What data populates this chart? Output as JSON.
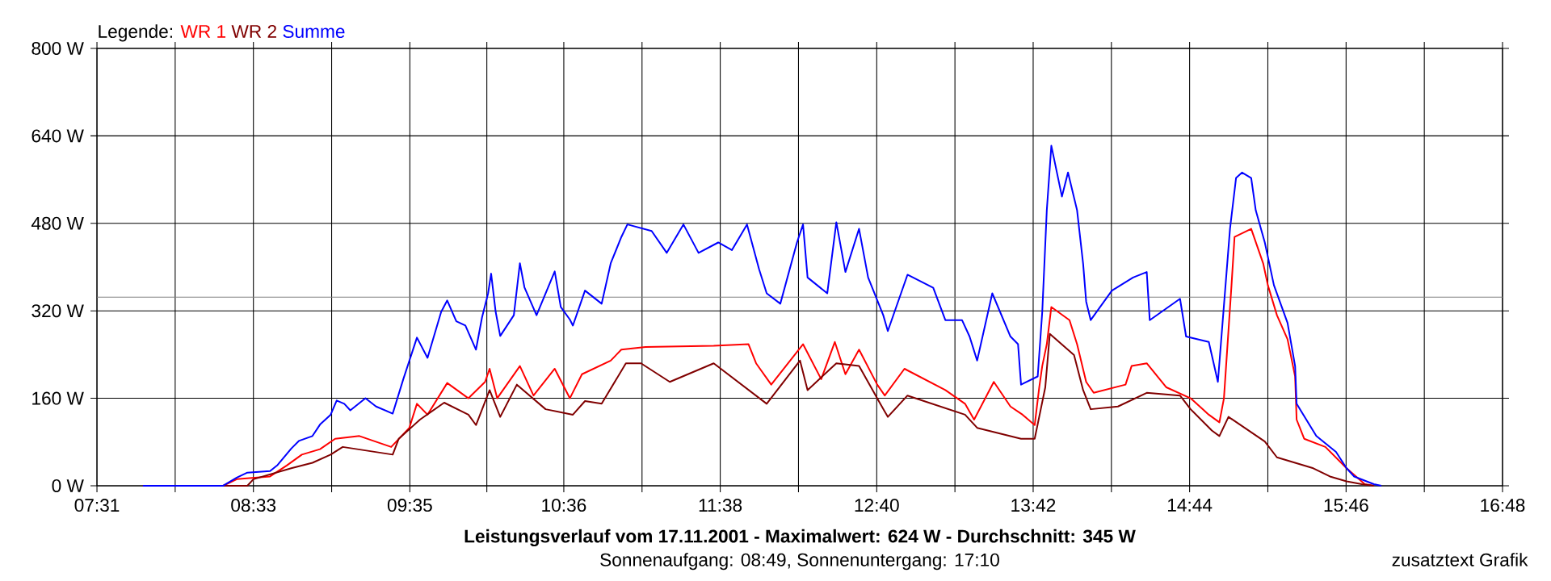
{
  "chart_data": {
    "type": "line",
    "title": "Leistungsverlauf vom 17.11.2001 - Maximalwert: 624 W - Durchschnitt: 345 W",
    "subtitle": "Sonnenaufgang: 08:49, Sonnenuntergang: 17:10",
    "annotations": [
      "zusatztext Grafik"
    ],
    "legend_title": "Legende:",
    "legend": "top left",
    "grid": true,
    "xlim": [
      7.5167,
      16.8
    ],
    "xticks": [
      {
        "value": 7.5167,
        "label": "07:31"
      },
      {
        "value": 8.0333,
        "label": null
      },
      {
        "value": 8.55,
        "label": "08:33"
      },
      {
        "value": 9.0667,
        "label": null
      },
      {
        "value": 9.5833,
        "label": "09:35"
      },
      {
        "value": 10.0917,
        "label": null
      },
      {
        "value": 10.6,
        "label": "10:36"
      },
      {
        "value": 11.1167,
        "label": null
      },
      {
        "value": 11.6333,
        "label": "11:38"
      },
      {
        "value": 12.15,
        "label": null
      },
      {
        "value": 12.6667,
        "label": "12:40"
      },
      {
        "value": 13.1833,
        "label": null
      },
      {
        "value": 13.7,
        "label": "13:42"
      },
      {
        "value": 14.2167,
        "label": null
      },
      {
        "value": 14.7333,
        "label": "14:44"
      },
      {
        "value": 15.25,
        "label": null
      },
      {
        "value": 15.7667,
        "label": "15:46"
      },
      {
        "value": 16.2833,
        "label": null
      },
      {
        "value": 16.8,
        "label": "16:48"
      }
    ],
    "ylim": [
      0,
      800
    ],
    "yticks": [
      {
        "value": 0,
        "label": "0 W"
      },
      {
        "value": 160,
        "label": "160 W"
      },
      {
        "value": 320,
        "label": "320 W"
      },
      {
        "value": 480,
        "label": "480 W"
      },
      {
        "value": 640,
        "label": "640 W"
      },
      {
        "value": 800,
        "label": "800 W"
      }
    ],
    "ref_lines": [
      {
        "axis": "y",
        "value": 345,
        "color": "#808080"
      }
    ],
    "series": [
      {
        "name": "WR 1",
        "color": "#ff0000",
        "x": [
          7.82,
          8.35,
          8.44,
          8.66,
          8.77,
          8.87,
          8.99,
          9.09,
          9.25,
          9.46,
          9.58,
          9.63,
          9.7,
          9.83,
          9.97,
          10.08,
          10.11,
          10.16,
          10.31,
          10.4,
          10.54,
          10.64,
          10.72,
          10.91,
          10.98,
          11.14,
          11.59,
          11.82,
          11.87,
          11.97,
          12.18,
          12.3,
          12.39,
          12.46,
          12.55,
          12.67,
          12.72,
          12.85,
          13.12,
          13.25,
          13.31,
          13.44,
          13.55,
          13.63,
          13.71,
          13.74,
          13.76,
          13.79,
          13.82,
          13.94,
          13.99,
          14.05,
          14.1,
          14.31,
          14.35,
          14.45,
          14.58,
          14.74,
          14.86,
          14.93,
          14.96,
          15.01,
          15.03,
          15.14,
          15.22,
          15.25,
          15.31,
          15.38,
          15.43,
          15.44,
          15.49,
          15.63,
          15.77,
          15.89,
          15.95
        ],
        "values": [
          0,
          0,
          12,
          17,
          37,
          57,
          67,
          86,
          91,
          71,
          106,
          150,
          130,
          188,
          160,
          190,
          214,
          160,
          219,
          165,
          214,
          160,
          204,
          229,
          249,
          254,
          256,
          259,
          224,
          185,
          259,
          195,
          263,
          204,
          249,
          185,
          165,
          214,
          175,
          150,
          121,
          190,
          145,
          130,
          111,
          180,
          219,
          259,
          327,
          303,
          259,
          190,
          170,
          185,
          219,
          224,
          180,
          160,
          130,
          116,
          160,
          367,
          455,
          470,
          406,
          367,
          312,
          268,
          200,
          121,
          86,
          71,
          32,
          3,
          0
        ]
      },
      {
        "name": "WR 2",
        "color": "#800000",
        "x": [
          7.82,
          8.51,
          8.55,
          8.8,
          8.94,
          9.06,
          9.14,
          9.47,
          9.51,
          9.65,
          9.81,
          9.97,
          10.02,
          10.11,
          10.18,
          10.29,
          10.48,
          10.66,
          10.74,
          10.85,
          11.01,
          11.11,
          11.3,
          11.59,
          11.94,
          12.16,
          12.21,
          12.4,
          12.55,
          12.69,
          12.74,
          12.87,
          13.25,
          13.33,
          13.62,
          13.71,
          13.78,
          13.81,
          13.97,
          14.03,
          14.08,
          14.26,
          14.45,
          14.67,
          14.74,
          14.88,
          14.93,
          14.99,
          15.23,
          15.31,
          15.55,
          15.66,
          15.77,
          15.87,
          15.95
        ],
        "values": [
          0,
          0,
          12,
          32,
          42,
          57,
          71,
          57,
          86,
          121,
          152,
          130,
          111,
          175,
          126,
          185,
          140,
          130,
          155,
          150,
          224,
          224,
          190,
          224,
          150,
          229,
          175,
          224,
          219,
          150,
          126,
          165,
          130,
          106,
          86,
          86,
          180,
          278,
          239,
          175,
          140,
          145,
          170,
          165,
          140,
          101,
          91,
          126,
          81,
          52,
          32,
          17,
          8,
          3,
          0
        ]
      },
      {
        "name": "Summe",
        "color": "#0000ff",
        "x": [
          7.82,
          8.35,
          8.44,
          8.51,
          8.66,
          8.71,
          8.8,
          8.85,
          8.94,
          8.99,
          9.06,
          9.1,
          9.15,
          9.19,
          9.29,
          9.36,
          9.47,
          9.54,
          9.63,
          9.7,
          9.79,
          9.83,
          9.89,
          9.95,
          10.02,
          10.06,
          10.1,
          10.12,
          10.15,
          10.18,
          10.27,
          10.31,
          10.34,
          10.42,
          10.54,
          10.58,
          10.64,
          10.66,
          10.74,
          10.85,
          10.91,
          10.98,
          11.02,
          11.18,
          11.28,
          11.39,
          11.49,
          11.62,
          11.71,
          11.81,
          11.89,
          11.94,
          12.03,
          12.14,
          12.18,
          12.21,
          12.34,
          12.4,
          12.46,
          12.55,
          12.61,
          12.71,
          12.74,
          12.87,
          13.04,
          13.12,
          13.23,
          13.28,
          13.33,
          13.43,
          13.55,
          13.6,
          13.62,
          13.73,
          13.76,
          13.79,
          13.82,
          13.89,
          13.93,
          13.99,
          14.03,
          14.05,
          14.08,
          14.22,
          14.36,
          14.45,
          14.47,
          14.67,
          14.71,
          14.86,
          14.92,
          15.0,
          15.04,
          15.08,
          15.14,
          15.17,
          15.23,
          15.29,
          15.38,
          15.43,
          15.44,
          15.57,
          15.7,
          15.77,
          15.82,
          15.95,
          16.0
        ],
        "values": [
          0,
          0,
          15,
          24,
          27,
          38,
          68,
          82,
          91,
          112,
          130,
          156,
          150,
          138,
          160,
          145,
          132,
          195,
          271,
          234,
          318,
          339,
          301,
          293,
          249,
          308,
          352,
          388,
          318,
          274,
          312,
          407,
          363,
          312,
          392,
          327,
          304,
          293,
          357,
          333,
          407,
          455,
          478,
          466,
          426,
          478,
          426,
          445,
          431,
          478,
          396,
          352,
          333,
          445,
          478,
          381,
          352,
          482,
          391,
          470,
          381,
          312,
          283,
          386,
          362,
          303,
          303,
          273,
          229,
          352,
          273,
          259,
          185,
          200,
          318,
          504,
          622,
          529,
          573,
          504,
          406,
          337,
          303,
          357,
          381,
          391,
          303,
          342,
          273,
          263,
          190,
          470,
          563,
          573,
          563,
          504,
          445,
          367,
          298,
          219,
          150,
          91,
          62,
          32,
          17,
          3,
          0
        ]
      }
    ]
  }
}
